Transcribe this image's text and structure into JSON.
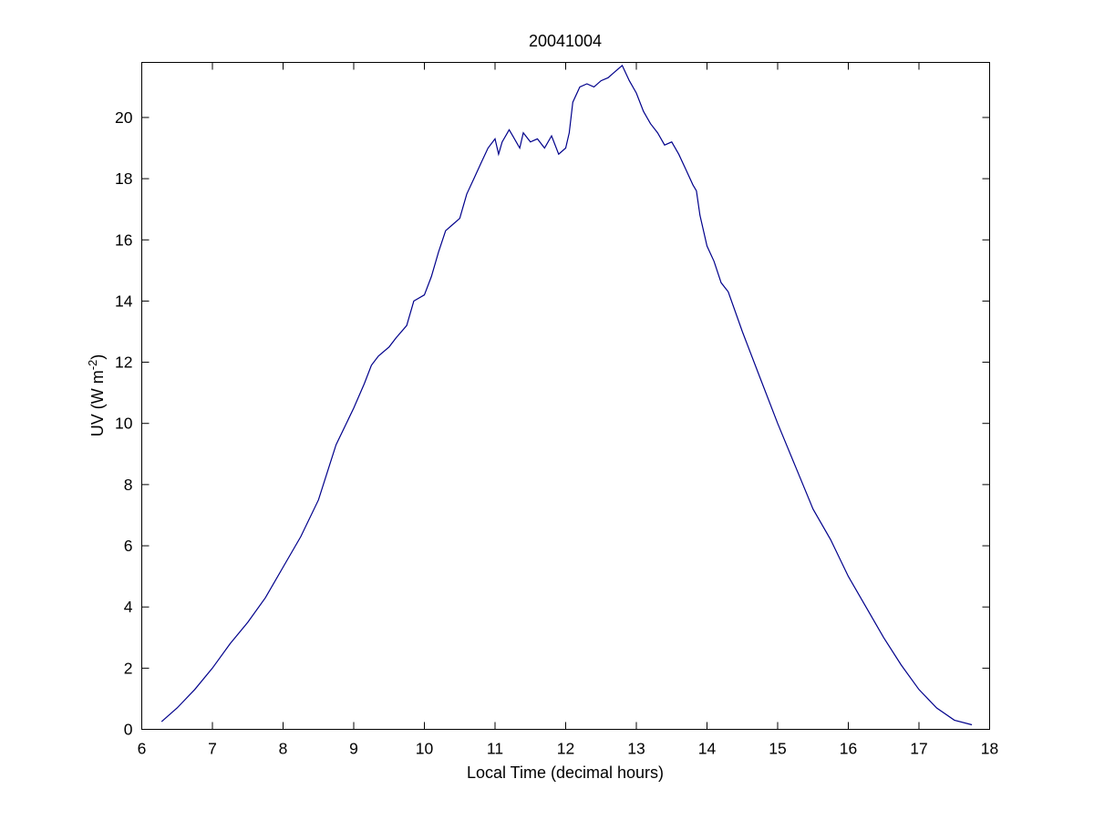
{
  "colors": {
    "line": "#00008b",
    "axes": "#000000",
    "background": "#ffffff"
  },
  "chart_data": {
    "type": "line",
    "title": "20041004",
    "xlabel": "Local Time (decimal hours)",
    "ylabel_prefix": "UV (W m",
    "ylabel_sup": "-2",
    "ylabel_suffix": ")",
    "xlim": [
      6,
      18
    ],
    "ylim": [
      0,
      21.8
    ],
    "xticks": [
      6,
      7,
      8,
      9,
      10,
      11,
      12,
      13,
      14,
      15,
      16,
      17,
      18
    ],
    "yticks": [
      0,
      2,
      4,
      6,
      8,
      10,
      12,
      14,
      16,
      18,
      20
    ],
    "grid": false,
    "legend": "none",
    "series": [
      {
        "x": [
          6.28,
          6.5,
          6.75,
          7.0,
          7.25,
          7.5,
          7.75,
          8.0,
          8.25,
          8.5,
          8.75,
          9.0,
          9.15,
          9.25,
          9.35,
          9.5,
          9.6,
          9.75,
          9.85,
          10.0,
          10.1,
          10.2,
          10.3,
          10.4,
          10.5,
          10.6,
          10.7,
          10.8,
          10.9,
          11.0,
          11.05,
          11.1,
          11.2,
          11.25,
          11.35,
          11.4,
          11.5,
          11.6,
          11.7,
          11.8,
          11.9,
          12.0,
          12.05,
          12.1,
          12.2,
          12.3,
          12.4,
          12.5,
          12.6,
          12.7,
          12.8,
          12.9,
          13.0,
          13.1,
          13.2,
          13.3,
          13.4,
          13.5,
          13.6,
          13.7,
          13.8,
          13.85,
          13.9,
          14.0,
          14.1,
          14.2,
          14.3,
          14.5,
          14.75,
          15.0,
          15.25,
          15.5,
          15.75,
          16.0,
          16.25,
          16.5,
          16.75,
          17.0,
          17.25,
          17.5,
          17.75
        ],
        "y": [
          0.25,
          0.7,
          1.3,
          2.0,
          2.8,
          3.5,
          4.3,
          5.3,
          6.3,
          7.5,
          9.3,
          10.5,
          11.3,
          11.9,
          12.2,
          12.5,
          12.8,
          13.2,
          14.0,
          14.2,
          14.8,
          15.6,
          16.3,
          16.5,
          16.7,
          17.5,
          18.0,
          18.5,
          19.0,
          19.3,
          18.8,
          19.2,
          19.6,
          19.4,
          19.0,
          19.5,
          19.2,
          19.3,
          19.0,
          19.4,
          18.8,
          19.0,
          19.5,
          20.5,
          21.0,
          21.1,
          21.0,
          21.2,
          21.3,
          21.5,
          21.7,
          21.2,
          20.8,
          20.2,
          19.8,
          19.5,
          19.1,
          19.2,
          18.8,
          18.3,
          17.8,
          17.6,
          16.8,
          15.8,
          15.3,
          14.6,
          14.3,
          13.0,
          11.5,
          10.0,
          8.6,
          7.2,
          6.2,
          5.0,
          4.0,
          3.0,
          2.1,
          1.3,
          0.7,
          0.3,
          0.15
        ]
      }
    ]
  }
}
